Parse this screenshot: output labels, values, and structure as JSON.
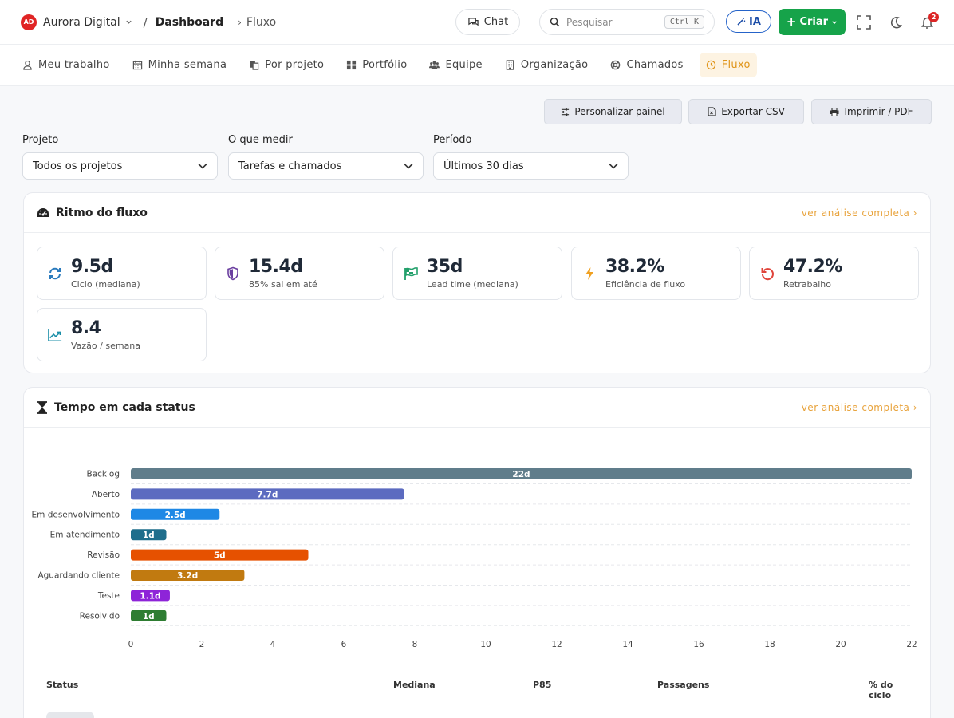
{
  "header": {
    "logo_text": "AD",
    "org_name": "Aurora Digital",
    "crumb_sep": "/",
    "crumb_main": "Dashboard",
    "crumb_arrow": "›",
    "crumb_sub": "Fluxo",
    "chat_label": "Chat",
    "search_placeholder": "Pesquisar",
    "search_shortcut": "Ctrl K",
    "ia_label": "IA",
    "create_label": "Criar",
    "notif_count": "2"
  },
  "tabs": [
    {
      "label": "Meu trabalho",
      "icon": "user-icon"
    },
    {
      "label": "Minha semana",
      "icon": "calendar-icon"
    },
    {
      "label": "Por projeto",
      "icon": "copy-icon"
    },
    {
      "label": "Portfólio",
      "icon": "grid-icon"
    },
    {
      "label": "Equipe",
      "icon": "users-icon"
    },
    {
      "label": "Organização",
      "icon": "building-icon"
    },
    {
      "label": "Chamados",
      "icon": "lifebuoy-icon"
    },
    {
      "label": "Fluxo",
      "icon": "clock-icon",
      "active": true
    }
  ],
  "actions": {
    "customize": "Personalizar painel",
    "export": "Exportar CSV",
    "print": "Imprimir / PDF"
  },
  "filters": [
    {
      "label": "Projeto",
      "value": "Todos os projetos"
    },
    {
      "label": "O que medir",
      "value": "Tarefas e chamados"
    },
    {
      "label": "Período",
      "value": "Últimos 30 dias"
    }
  ],
  "rhythm": {
    "title": "Ritmo do fluxo",
    "link": "ver análise completa ›",
    "kpis": [
      {
        "value": "9.5d",
        "label": "Ciclo (mediana)",
        "icon": "refresh-icon",
        "color": "#2b7bbd"
      },
      {
        "value": "15.4d",
        "label": "85% sai em até",
        "icon": "shield-icon",
        "color": "#6b3fa0"
      },
      {
        "value": "35d",
        "label": "Lead time (mediana)",
        "icon": "flag-icon",
        "color": "#22a06b"
      },
      {
        "value": "38.2%",
        "label": "Eficiência de fluxo",
        "icon": "bolt-icon",
        "color": "#f0a020"
      },
      {
        "value": "47.2%",
        "label": "Retrabalho",
        "icon": "undo-icon",
        "color": "#e0443a"
      },
      {
        "value": "8.4",
        "label": "Vazão / semana",
        "icon": "trend-icon",
        "color": "#1b8fa8"
      }
    ]
  },
  "status_time": {
    "title": "Tempo em cada status",
    "link": "ver análise completa ›",
    "table_headers": [
      "Status",
      "Mediana",
      "P85",
      "Passagens",
      "% do ciclo"
    ]
  },
  "chart_data": {
    "type": "bar",
    "orientation": "horizontal",
    "categories": [
      "Backlog",
      "Aberto",
      "Em desenvolvimento",
      "Em atendimento",
      "Revisão",
      "Aguardando cliente",
      "Teste",
      "Resolvido"
    ],
    "values": [
      22,
      7.7,
      2.5,
      1,
      5,
      3.2,
      1.1,
      1
    ],
    "labels": [
      "22d",
      "7.7d",
      "2.5d",
      "1d",
      "5d",
      "3.2d",
      "1.1d",
      "1d"
    ],
    "colors": [
      "#607d8b",
      "#5c6bc0",
      "#1e88e5",
      "#1f6e8c",
      "#e65100",
      "#c17a10",
      "#8e24d8",
      "#2e7d32"
    ],
    "xlim": [
      0,
      22
    ],
    "xticks": [
      0,
      2,
      4,
      6,
      8,
      10,
      12,
      14,
      16,
      18,
      20,
      22
    ]
  }
}
